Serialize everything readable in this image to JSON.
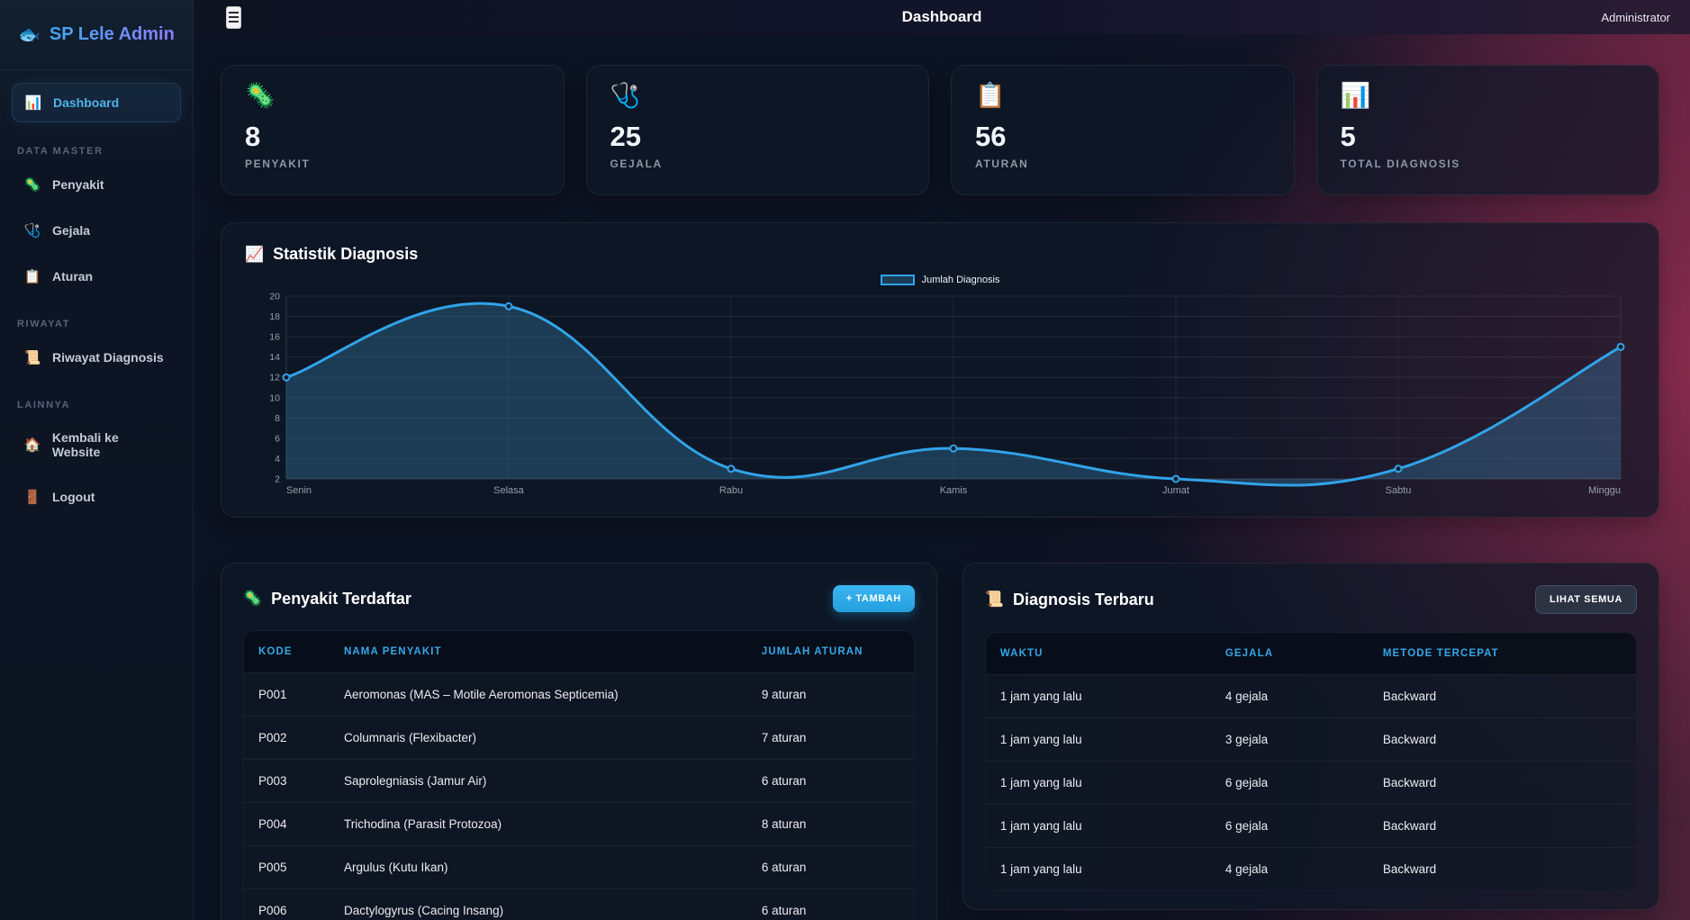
{
  "colors": {
    "accent_blue": "#36a6e8",
    "button_primary": "#2ca9e1",
    "chart_line": "#31a3e8",
    "chart_fill": "rgba(62,150,200,0.30)",
    "bg_red": "#4e2339",
    "sidebar_active_text": "#4fb3ea"
  },
  "sidebar": {
    "logo": {
      "icon": "🐟",
      "title": "SP Lele Admin"
    },
    "active_item": {
      "icon": "📊",
      "label": "Dashboard"
    },
    "groups": [
      {
        "label": "DATA MASTER",
        "items": [
          {
            "icon": "🦠",
            "label": "Penyakit"
          },
          {
            "icon": "🩺",
            "label": "Gejala"
          },
          {
            "icon": "📋",
            "label": "Aturan"
          }
        ]
      },
      {
        "label": "RIWAYAT",
        "items": [
          {
            "icon": "📜",
            "label": "Riwayat Diagnosis"
          }
        ]
      },
      {
        "label": "LAINNYA",
        "items": [
          {
            "icon": "🏠",
            "label": "Kembali ke Website"
          },
          {
            "icon": "🚪",
            "label": "Logout"
          }
        ]
      }
    ]
  },
  "header": {
    "title": "Dashboard",
    "user": "Administrator"
  },
  "stats": [
    {
      "icon": "🦠",
      "value": "8",
      "label": "PENYAKIT"
    },
    {
      "icon": "🩺",
      "value": "25",
      "label": "GEJALA"
    },
    {
      "icon": "📋",
      "value": "56",
      "label": "ATURAN"
    },
    {
      "icon": "📊",
      "value": "5",
      "label": "TOTAL DIAGNOSIS"
    }
  ],
  "chart_card": {
    "icon": "📈",
    "title": "Statistik Diagnosis"
  },
  "chart_data": {
    "type": "line",
    "title": "Statistik Diagnosis",
    "categories": [
      "Senin",
      "Selasa",
      "Rabu",
      "Kamis",
      "Jumat",
      "Sabtu",
      "Minggu"
    ],
    "series": [
      {
        "name": "Jumlah Diagnosis",
        "values": [
          12,
          19,
          3,
          5,
          2,
          3,
          15
        ]
      }
    ],
    "ylim": [
      2,
      20
    ],
    "ytick_step": 2,
    "grid": true,
    "legend_position": "top",
    "xlabel": "",
    "ylabel": ""
  },
  "penyakit_table": {
    "icon": "🦠",
    "title": "Penyakit Terdaftar",
    "button_label": "+ TAMBAH",
    "columns": [
      "KODE",
      "NAMA PENYAKIT",
      "JUMLAH ATURAN"
    ],
    "rows": [
      [
        "P001",
        "Aeromonas (MAS – Motile Aeromonas Septicemia)",
        "9 aturan"
      ],
      [
        "P002",
        "Columnaris (Flexibacter)",
        "7 aturan"
      ],
      [
        "P003",
        "Saprolegniasis (Jamur Air)",
        "6 aturan"
      ],
      [
        "P004",
        "Trichodina (Parasit Protozoa)",
        "8 aturan"
      ],
      [
        "P005",
        "Argulus (Kutu Ikan)",
        "6 aturan"
      ],
      [
        "P006",
        "Dactylogyrus (Cacing Insang)",
        "6 aturan"
      ]
    ]
  },
  "diagnosis_table": {
    "icon": "📜",
    "title": "Diagnosis Terbaru",
    "button_label": "LIHAT SEMUA",
    "columns": [
      "WAKTU",
      "GEJALA",
      "METODE TERCEPAT"
    ],
    "rows": [
      [
        "1 jam yang lalu",
        "4 gejala",
        "Backward"
      ],
      [
        "1 jam yang lalu",
        "3 gejala",
        "Backward"
      ],
      [
        "1 jam yang lalu",
        "6 gejala",
        "Backward"
      ],
      [
        "1 jam yang lalu",
        "6 gejala",
        "Backward"
      ],
      [
        "1 jam yang lalu",
        "4 gejala",
        "Backward"
      ]
    ]
  }
}
